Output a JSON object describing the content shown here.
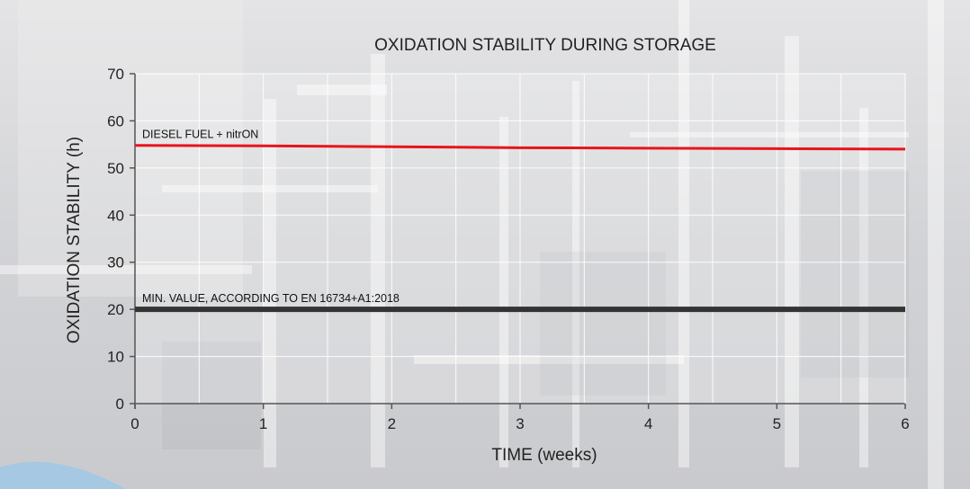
{
  "chart_data": {
    "type": "line",
    "title": "OXIDATION STABILITY DURING STORAGE",
    "xlabel": "TIME (weeks)",
    "ylabel": "OXIDATION STABILITY (h)",
    "xlim": [
      0,
      6
    ],
    "ylim": [
      0,
      70
    ],
    "x_ticks": [
      "0",
      "1",
      "2",
      "3",
      "4",
      "5",
      "6"
    ],
    "y_ticks": [
      "0",
      "10",
      "20",
      "30",
      "40",
      "50",
      "60",
      "70"
    ],
    "grid": true,
    "series": [
      {
        "name": "DIESEL FUEL + nitrON",
        "color": "#e8141c",
        "x": [
          0,
          1,
          2,
          3,
          4,
          5,
          6
        ],
        "y": [
          54.8,
          54.7,
          54.5,
          54.3,
          54.2,
          54.1,
          54.0
        ]
      },
      {
        "name": "MIN. VALUE, ACCORDING TO EN 16734+A1:2018",
        "color": "#333333",
        "x": [
          0,
          6
        ],
        "y": [
          20,
          20
        ]
      }
    ]
  }
}
